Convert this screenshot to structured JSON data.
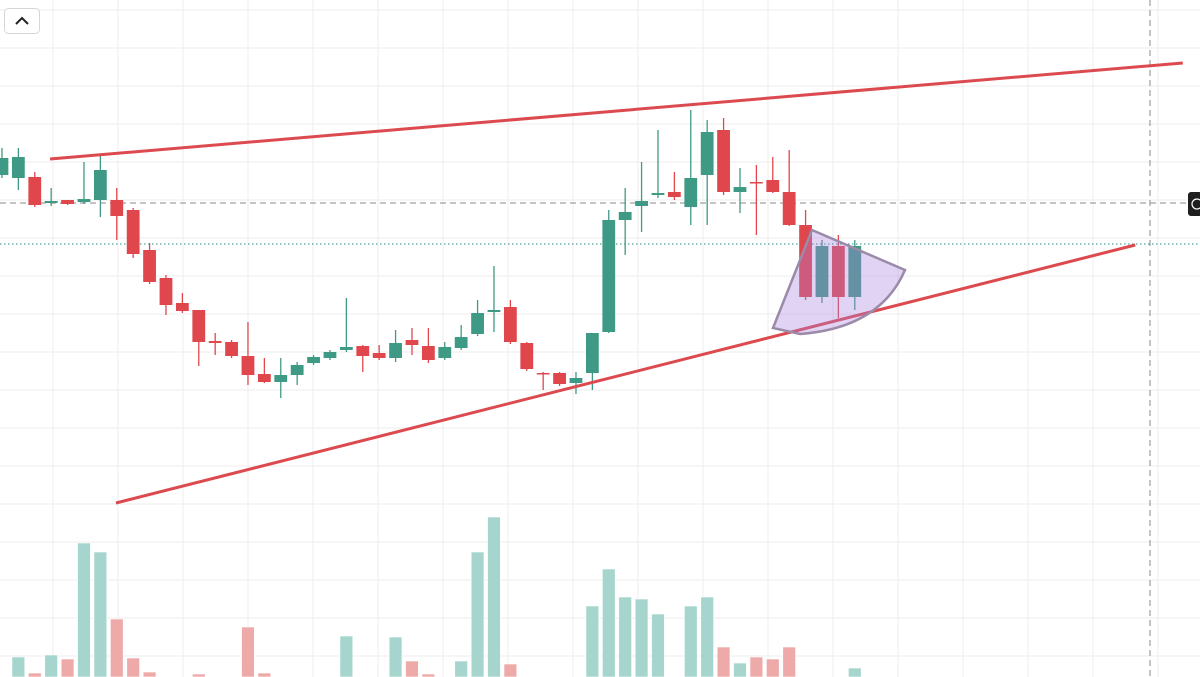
{
  "chart_data": {
    "type": "candlestick",
    "xlim": [
      -0.12,
      73.05
    ],
    "ylim": [
      0,
      677
    ],
    "up_color": "#3f9a85",
    "down_color": "#e0474c",
    "volume_up_color": "#a5d5cd",
    "volume_down_color": "#eeaaa9",
    "open": [
      502,
      499,
      500,
      474,
      477,
      475,
      477,
      477,
      467,
      427,
      399,
      374,
      367,
      336,
      335,
      321,
      303,
      295,
      302,
      314,
      319,
      327,
      331,
      324,
      319,
      337,
      331,
      319,
      329,
      343,
      365,
      370,
      334,
      304,
      304,
      294,
      304,
      345,
      457,
      471,
      482,
      485,
      470,
      502,
      547,
      485,
      495,
      497,
      485,
      452,
      380,
      431,
      380
    ],
    "high": [
      529,
      529,
      505,
      489,
      477,
      515,
      522,
      489,
      469,
      434,
      402,
      384,
      367,
      344,
      337,
      355,
      319,
      319,
      315,
      322,
      327,
      379,
      332,
      332,
      347,
      349,
      349,
      335,
      352,
      377,
      411,
      377,
      335,
      305,
      305,
      305,
      344,
      467,
      489,
      515,
      547,
      505,
      567,
      557,
      559,
      509,
      512,
      520,
      527,
      467,
      437,
      442,
      437
    ],
    "low": [
      499,
      487,
      470,
      471,
      472,
      473,
      460,
      437,
      419,
      393,
      362,
      364,
      311,
      322,
      319,
      292,
      294,
      279,
      292,
      312,
      317,
      325,
      305,
      317,
      315,
      322,
      314,
      317,
      327,
      341,
      345,
      333,
      306,
      287,
      291,
      283,
      287,
      344,
      422,
      445,
      479,
      477,
      452,
      452,
      482,
      464,
      442,
      484,
      451,
      377,
      374,
      359,
      367
    ],
    "close": [
      519,
      520,
      472,
      476,
      473,
      478,
      507,
      461,
      423,
      395,
      372,
      366,
      335,
      334,
      321,
      302,
      295,
      302,
      312,
      320,
      325,
      330,
      321,
      319,
      334,
      332,
      317,
      330,
      340,
      364,
      367,
      335,
      308,
      303,
      293,
      299,
      344,
      457,
      465,
      476,
      484,
      480,
      499,
      545,
      485,
      490,
      494,
      485,
      452,
      380,
      431,
      380,
      431
    ],
    "volume": [
      null,
      20,
      4,
      22,
      18,
      134,
      125,
      58,
      19,
      5,
      null,
      null,
      3,
      null,
      null,
      50,
      4,
      null,
      null,
      null,
      null,
      41,
      null,
      null,
      40,
      16,
      3,
      null,
      16,
      125,
      160,
      13,
      null,
      null,
      null,
      null,
      71,
      108,
      80,
      78,
      63,
      null,
      71,
      80,
      30,
      14,
      20,
      18,
      30,
      null,
      null,
      null,
      9
    ],
    "trend_lines": [
      {
        "start": [
          2.93,
          518
        ],
        "end": [
          72.0,
          614
        ],
        "color": "#dc4a4f"
      },
      {
        "start": [
          6.95,
          174
        ],
        "end": [
          69.1,
          432
        ],
        "color": "#dc4a4f"
      }
    ],
    "price_lines": [
      {
        "value": 474,
        "style": "dashed",
        "color": "#8a8a8a"
      },
      {
        "value": 433,
        "style": "dotted",
        "color": "#2e8c80"
      }
    ],
    "crosshair_x": 70
  }
}
